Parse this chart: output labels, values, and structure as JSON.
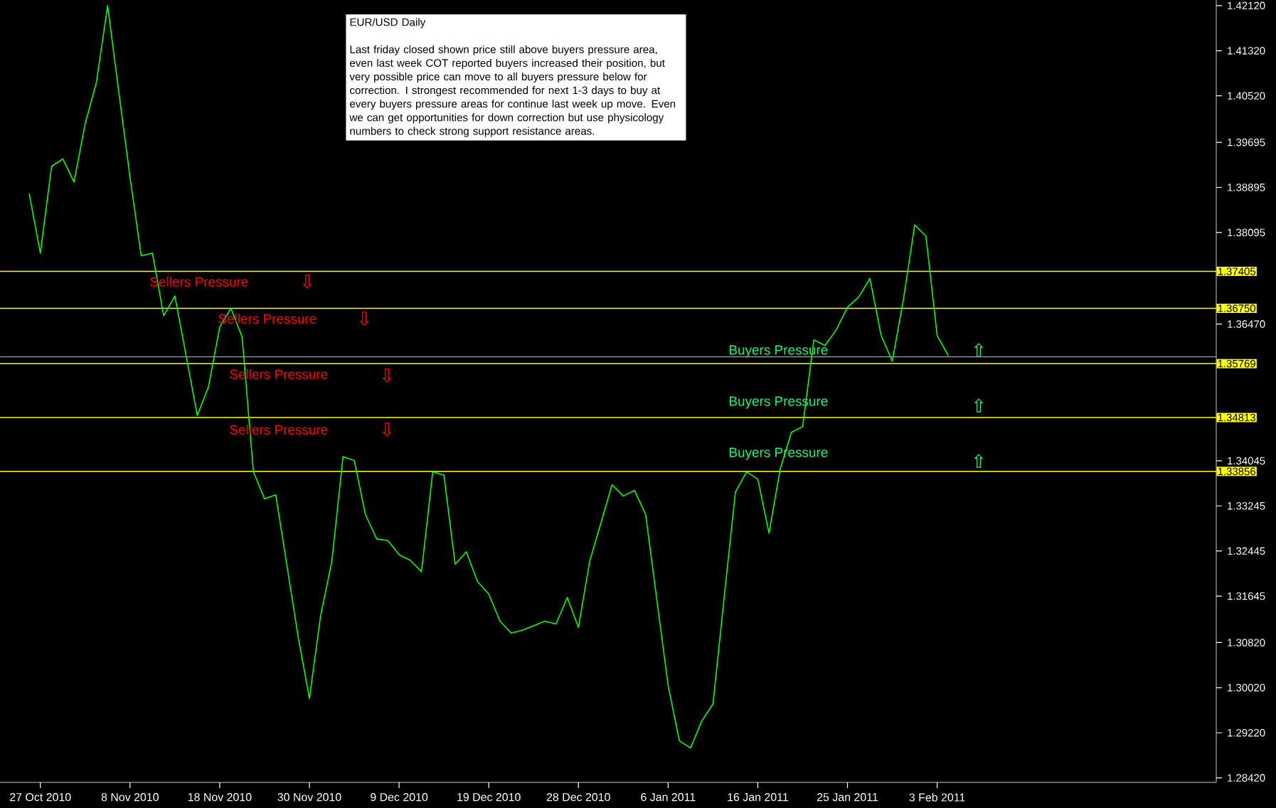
{
  "chart_data": {
    "type": "line",
    "title": "EUR/USD Daily",
    "categories": [
      null,
      "27 Oct 2010",
      null,
      null,
      null,
      null,
      null,
      null,
      null,
      "8 Nov 2010",
      null,
      null,
      null,
      null,
      null,
      null,
      null,
      "18 Nov 2010",
      null,
      null,
      null,
      null,
      null,
      null,
      null,
      "30 Nov 2010",
      null,
      null,
      null,
      null,
      null,
      null,
      null,
      "9 Dec 2010",
      null,
      null,
      null,
      null,
      null,
      null,
      null,
      "19 Dec 2010",
      null,
      null,
      null,
      null,
      null,
      null,
      null,
      "28 Dec 2010",
      null,
      null,
      null,
      null,
      null,
      null,
      null,
      "6 Jan 2011",
      null,
      null,
      null,
      null,
      null,
      null,
      null,
      "16 Jan 2011",
      null,
      null,
      null,
      null,
      null,
      null,
      null,
      "25 Jan 2011",
      null,
      null,
      null,
      null,
      null,
      null,
      null,
      "3 Feb 2011",
      null
    ],
    "series": [
      {
        "color": "#00ff00",
        "values": [
          1.3879,
          1.3773,
          1.3927,
          1.394,
          1.3899,
          1.4003,
          1.4076,
          1.4212,
          1.4058,
          1.3907,
          1.3768,
          1.3773,
          1.3662,
          1.3697,
          1.3591,
          1.3485,
          1.3536,
          1.3642,
          1.3675,
          1.3624,
          1.3385,
          1.3337,
          1.3344,
          1.3218,
          1.3092,
          1.2983,
          1.313,
          1.3226,
          1.3412,
          1.3405,
          1.3309,
          1.3266,
          1.3263,
          1.3238,
          1.3228,
          1.3208,
          1.3385,
          1.3379,
          1.3221,
          1.3243,
          1.319,
          1.3168,
          1.312,
          1.3099,
          1.3104,
          1.3112,
          1.312,
          1.3115,
          1.3162,
          1.3109,
          1.3226,
          1.3294,
          1.3362,
          1.3342,
          1.3352,
          1.3309,
          1.3157,
          1.3006,
          1.2908,
          1.2895,
          1.2943,
          1.2973,
          1.3162,
          1.3349,
          1.3385,
          1.3372,
          1.3276,
          1.339,
          1.3455,
          1.3465,
          1.3619,
          1.3609,
          1.3637,
          1.3677,
          1.3695,
          1.3728,
          1.3627,
          1.3581,
          1.3692,
          1.3823,
          1.3803,
          1.3627,
          1.3591
        ]
      }
    ],
    "ylim": [
      1.2834,
      1.4222
    ],
    "yticks": [
      {
        "value": 1.4212,
        "label": "1.42120"
      },
      {
        "value": 1.4132,
        "label": "1.41320"
      },
      {
        "value": 1.4052,
        "label": "1.40520"
      },
      {
        "value": 1.39695,
        "label": "1.39695"
      },
      {
        "value": 1.38895,
        "label": "1.38895"
      },
      {
        "value": 1.38095,
        "label": "1.38095"
      },
      {
        "value": 1.3647,
        "label": "1.36470"
      },
      {
        "value": 1.34045,
        "label": "1.34045"
      },
      {
        "value": 1.33245,
        "label": "1.33245"
      },
      {
        "value": 1.32445,
        "label": "1.32445"
      },
      {
        "value": 1.31645,
        "label": "1.31645"
      },
      {
        "value": 1.3082,
        "label": "1.30820"
      },
      {
        "value": 1.3002,
        "label": "1.30020"
      },
      {
        "value": 1.2922,
        "label": "1.29220"
      },
      {
        "value": 1.2842,
        "label": "1.28420"
      }
    ],
    "ref_lines": [
      {
        "axis": "y",
        "value": 1.37405,
        "label": "1.37405",
        "color": "#ffff00"
      },
      {
        "axis": "y",
        "value": 1.3675,
        "label": "1.36750",
        "color": "#ffff00"
      },
      {
        "axis": "y",
        "value": 1.3589,
        "color": "#a0a0a0"
      },
      {
        "axis": "y",
        "value": 1.35769,
        "label": "1.35769",
        "color": "#ffff00"
      },
      {
        "axis": "y",
        "value": 1.34813,
        "label": "1.34813",
        "color": "#ffff00"
      },
      {
        "axis": "y",
        "value": 1.33856,
        "label": "1.33856",
        "color": "#ffff00"
      }
    ],
    "annotations": [
      "Last friday closed shown price still above buyers pressure area, even last week COT reported buyers increased their position, but very possible price can move to all buyers pressure below for correction. I strongest recommended for next 1-3 days to buy at every buyers pressure areas for continue last week up move. Even we can get opportunities for down correction but use physicology numbers to check strong support resistance areas.",
      "Sellers Pressure",
      "⇩",
      "Sellers Pressure",
      "⇩",
      "Sellers Pressure",
      "⇩",
      "Sellers Pressure",
      "⇩",
      "Buyers Pressure",
      "⇧",
      "Buyers Pressure",
      "⇧",
      "Buyers Pressure",
      "⇧"
    ],
    "grid": false
  }
}
